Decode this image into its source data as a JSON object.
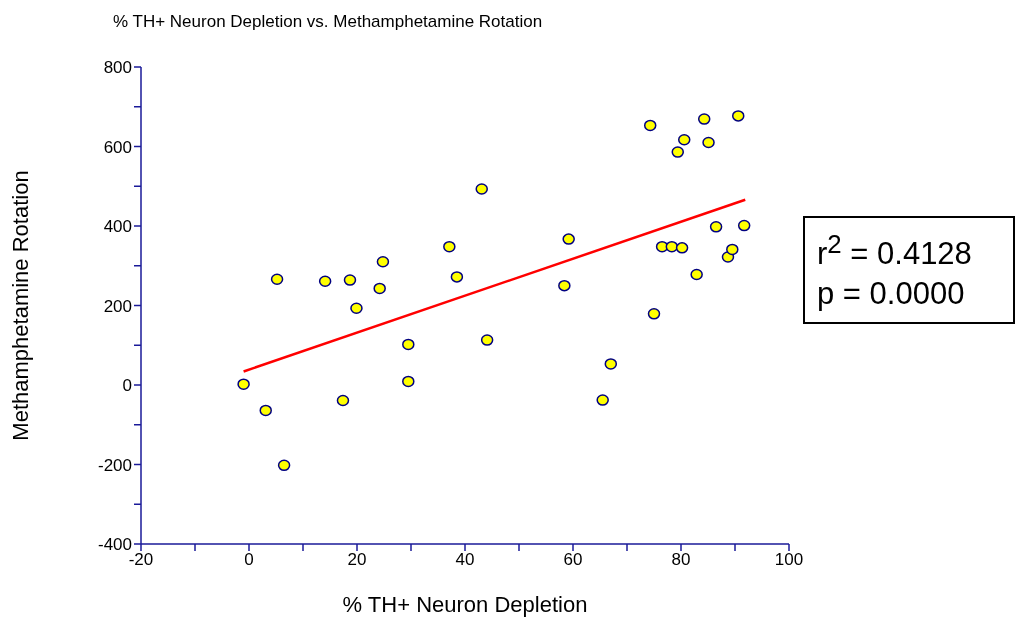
{
  "chart_data": {
    "type": "scatter",
    "title": "% TH+ Neuron Depletion vs. Methamphetamine Rotation",
    "xlabel": "% TH+ Neuron Depletion",
    "ylabel": "Methamphetamine Rotation",
    "xlim": [
      -20,
      100
    ],
    "xticks": [
      -20,
      {
        "value": -10,
        "label": null
      },
      0,
      {
        "value": 10,
        "label": null
      },
      20,
      {
        "value": 30,
        "label": null
      },
      40,
      {
        "value": 50,
        "label": null
      },
      60,
      {
        "value": 70,
        "label": null
      },
      80,
      {
        "value": 90,
        "label": null
      },
      100
    ],
    "ylim": [
      -400,
      800
    ],
    "yticks": [
      -400,
      {
        "value": -300,
        "label": null
      },
      -200,
      {
        "value": -100,
        "label": null
      },
      0,
      {
        "value": 100,
        "label": null
      },
      200,
      {
        "value": 300,
        "label": null
      },
      400,
      {
        "value": 500,
        "label": null
      },
      600,
      {
        "value": 700,
        "label": null
      },
      800
    ],
    "series": [
      {
        "marker": "circle",
        "color": "#ffff00",
        "x": [
          -1,
          3.1,
          5.2,
          6.5,
          14.1,
          17.4,
          18.7,
          19.9,
          24.2,
          24.8,
          29.5,
          29.5,
          37.1,
          38.5,
          43.1,
          44.1,
          58.4,
          59.2,
          65.5,
          67.0,
          74.3,
          75.0,
          76.5,
          78.3,
          79.4,
          80.2,
          80.6,
          82.9,
          84.3,
          85.1,
          86.5,
          88.7,
          89.5,
          90.6,
          91.7
        ],
        "values": [
          2,
          -64,
          266,
          -202,
          261,
          -39,
          264,
          193,
          243,
          310,
          102,
          9,
          348,
          272,
          493,
          113,
          250,
          367,
          -38,
          53,
          653,
          179,
          348,
          348,
          586,
          345,
          617,
          278,
          669,
          610,
          398,
          322,
          341,
          677,
          401
        ]
      },
      {
        "type": "line",
        "color": "#ff0000",
        "x": [
          -1,
          91.9
        ],
        "values": [
          34,
          466
        ]
      }
    ],
    "annotations": [
      "r$^{2}$ = 0.4128",
      "p = 0.0000"
    ]
  }
}
